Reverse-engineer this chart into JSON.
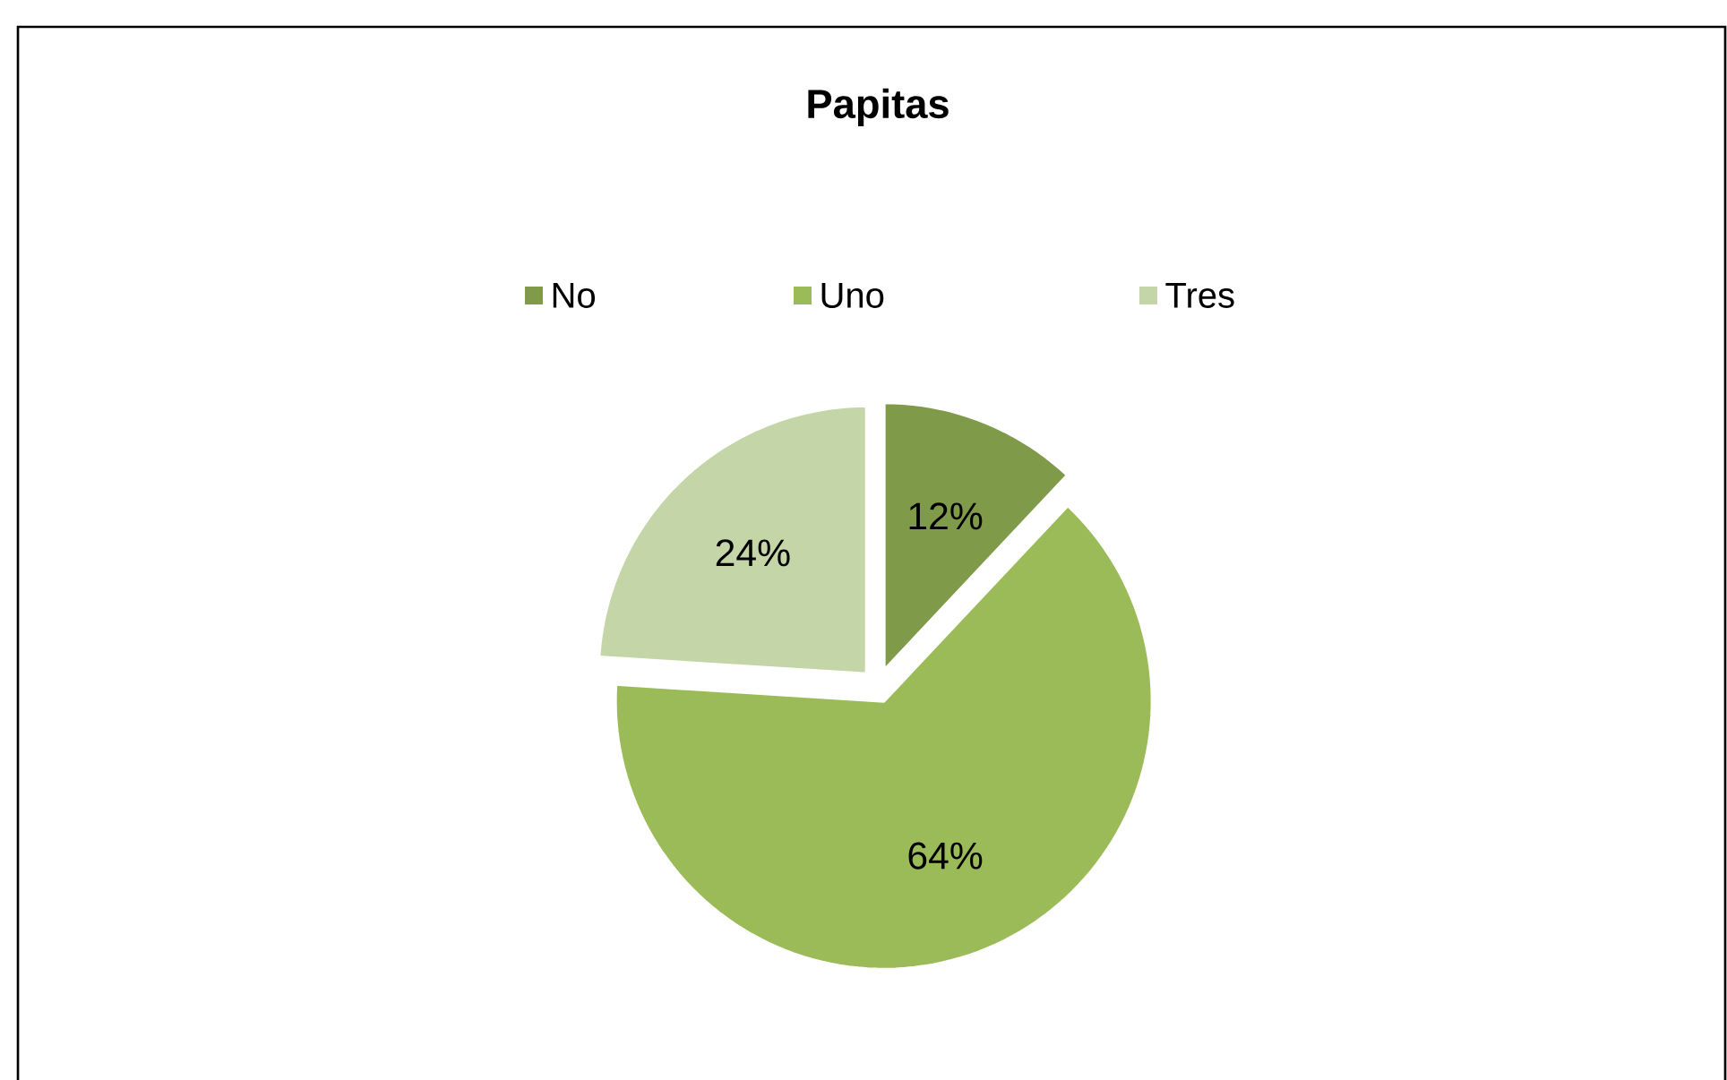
{
  "chart_data": {
    "type": "pie",
    "title": "Papitas",
    "categories": [
      "No",
      "Uno",
      "Tres"
    ],
    "values": [
      12,
      64,
      24
    ],
    "colors": [
      "#7f9a48",
      "#9bbb59",
      "#c4d6a8"
    ],
    "value_labels": [
      "12%",
      "64%",
      "24%"
    ],
    "legend": "top"
  }
}
